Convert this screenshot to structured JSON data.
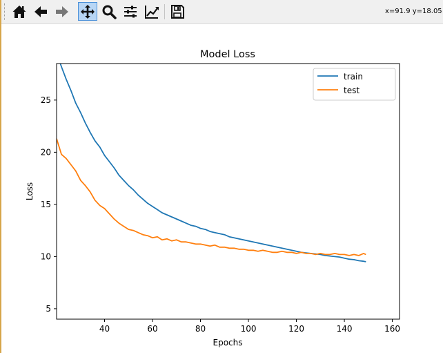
{
  "toolbar": {
    "tools": [
      {
        "name": "home",
        "icon": "home-icon"
      },
      {
        "name": "back",
        "icon": "back-arrow-icon"
      },
      {
        "name": "forward",
        "icon": "forward-arrow-icon"
      },
      {
        "name": "pan",
        "icon": "pan-move-icon",
        "active": true
      },
      {
        "name": "zoom",
        "icon": "zoom-magnifier-icon"
      },
      {
        "name": "subplots",
        "icon": "configure-subplots-icon"
      },
      {
        "name": "edit-axes",
        "icon": "edit-axes-icon"
      },
      {
        "name": "save",
        "icon": "save-floppy-icon"
      }
    ],
    "coords": "x=91.9 y=18.05"
  },
  "chart_data": {
    "type": "line",
    "title": "Model Loss",
    "xlabel": "Epochs",
    "ylabel": "Loss",
    "xlim": [
      20,
      163
    ],
    "ylim": [
      4,
      28.5
    ],
    "xticks": [
      40,
      60,
      80,
      100,
      120,
      140,
      160
    ],
    "yticks": [
      5,
      10,
      15,
      20,
      25
    ],
    "grid": false,
    "legend": "top-right",
    "series": [
      {
        "name": "train",
        "color": "#1f77b4",
        "x": [
          20,
          22,
          24,
          26,
          28,
          30,
          32,
          34,
          36,
          38,
          40,
          42,
          44,
          46,
          48,
          50,
          52,
          54,
          56,
          58,
          60,
          62,
          64,
          66,
          68,
          70,
          72,
          74,
          76,
          78,
          80,
          82,
          84,
          86,
          88,
          90,
          92,
          94,
          96,
          98,
          100,
          102,
          104,
          106,
          108,
          110,
          112,
          114,
          116,
          118,
          120,
          122,
          124,
          126,
          128,
          130,
          132,
          134,
          136,
          138,
          140,
          142,
          144,
          146,
          148,
          149
        ],
        "values": [
          29.5,
          28.2,
          27.0,
          25.9,
          24.7,
          23.8,
          22.8,
          21.9,
          21.1,
          20.5,
          19.7,
          19.1,
          18.5,
          17.8,
          17.3,
          16.8,
          16.4,
          15.9,
          15.5,
          15.1,
          14.8,
          14.5,
          14.2,
          14.0,
          13.8,
          13.6,
          13.4,
          13.2,
          13.0,
          12.9,
          12.7,
          12.6,
          12.4,
          12.3,
          12.2,
          12.1,
          11.9,
          11.8,
          11.7,
          11.6,
          11.5,
          11.4,
          11.3,
          11.2,
          11.1,
          11.0,
          10.9,
          10.8,
          10.7,
          10.6,
          10.5,
          10.4,
          10.35,
          10.3,
          10.25,
          10.2,
          10.1,
          10.05,
          10.0,
          9.95,
          9.85,
          9.75,
          9.7,
          9.6,
          9.55,
          9.5
        ]
      },
      {
        "name": "test",
        "color": "#ff7f0e",
        "x": [
          20,
          22,
          24,
          26,
          28,
          30,
          32,
          34,
          36,
          38,
          40,
          42,
          44,
          46,
          48,
          50,
          52,
          54,
          56,
          58,
          60,
          62,
          64,
          66,
          68,
          70,
          72,
          74,
          76,
          78,
          80,
          82,
          84,
          86,
          88,
          90,
          92,
          94,
          96,
          98,
          100,
          102,
          104,
          106,
          108,
          110,
          112,
          114,
          116,
          118,
          120,
          122,
          124,
          126,
          128,
          130,
          132,
          134,
          136,
          138,
          140,
          142,
          144,
          146,
          148,
          149
        ],
        "values": [
          21.3,
          19.8,
          19.4,
          18.8,
          18.2,
          17.3,
          16.8,
          16.2,
          15.4,
          14.9,
          14.6,
          14.1,
          13.6,
          13.2,
          12.9,
          12.6,
          12.5,
          12.3,
          12.1,
          12.0,
          11.8,
          11.9,
          11.6,
          11.7,
          11.5,
          11.6,
          11.4,
          11.4,
          11.3,
          11.2,
          11.2,
          11.1,
          11.0,
          11.1,
          10.9,
          10.9,
          10.8,
          10.8,
          10.7,
          10.7,
          10.6,
          10.6,
          10.5,
          10.6,
          10.5,
          10.4,
          10.4,
          10.5,
          10.4,
          10.4,
          10.3,
          10.4,
          10.3,
          10.3,
          10.2,
          10.3,
          10.2,
          10.2,
          10.3,
          10.2,
          10.2,
          10.1,
          10.2,
          10.1,
          10.3,
          10.2
        ]
      }
    ]
  }
}
